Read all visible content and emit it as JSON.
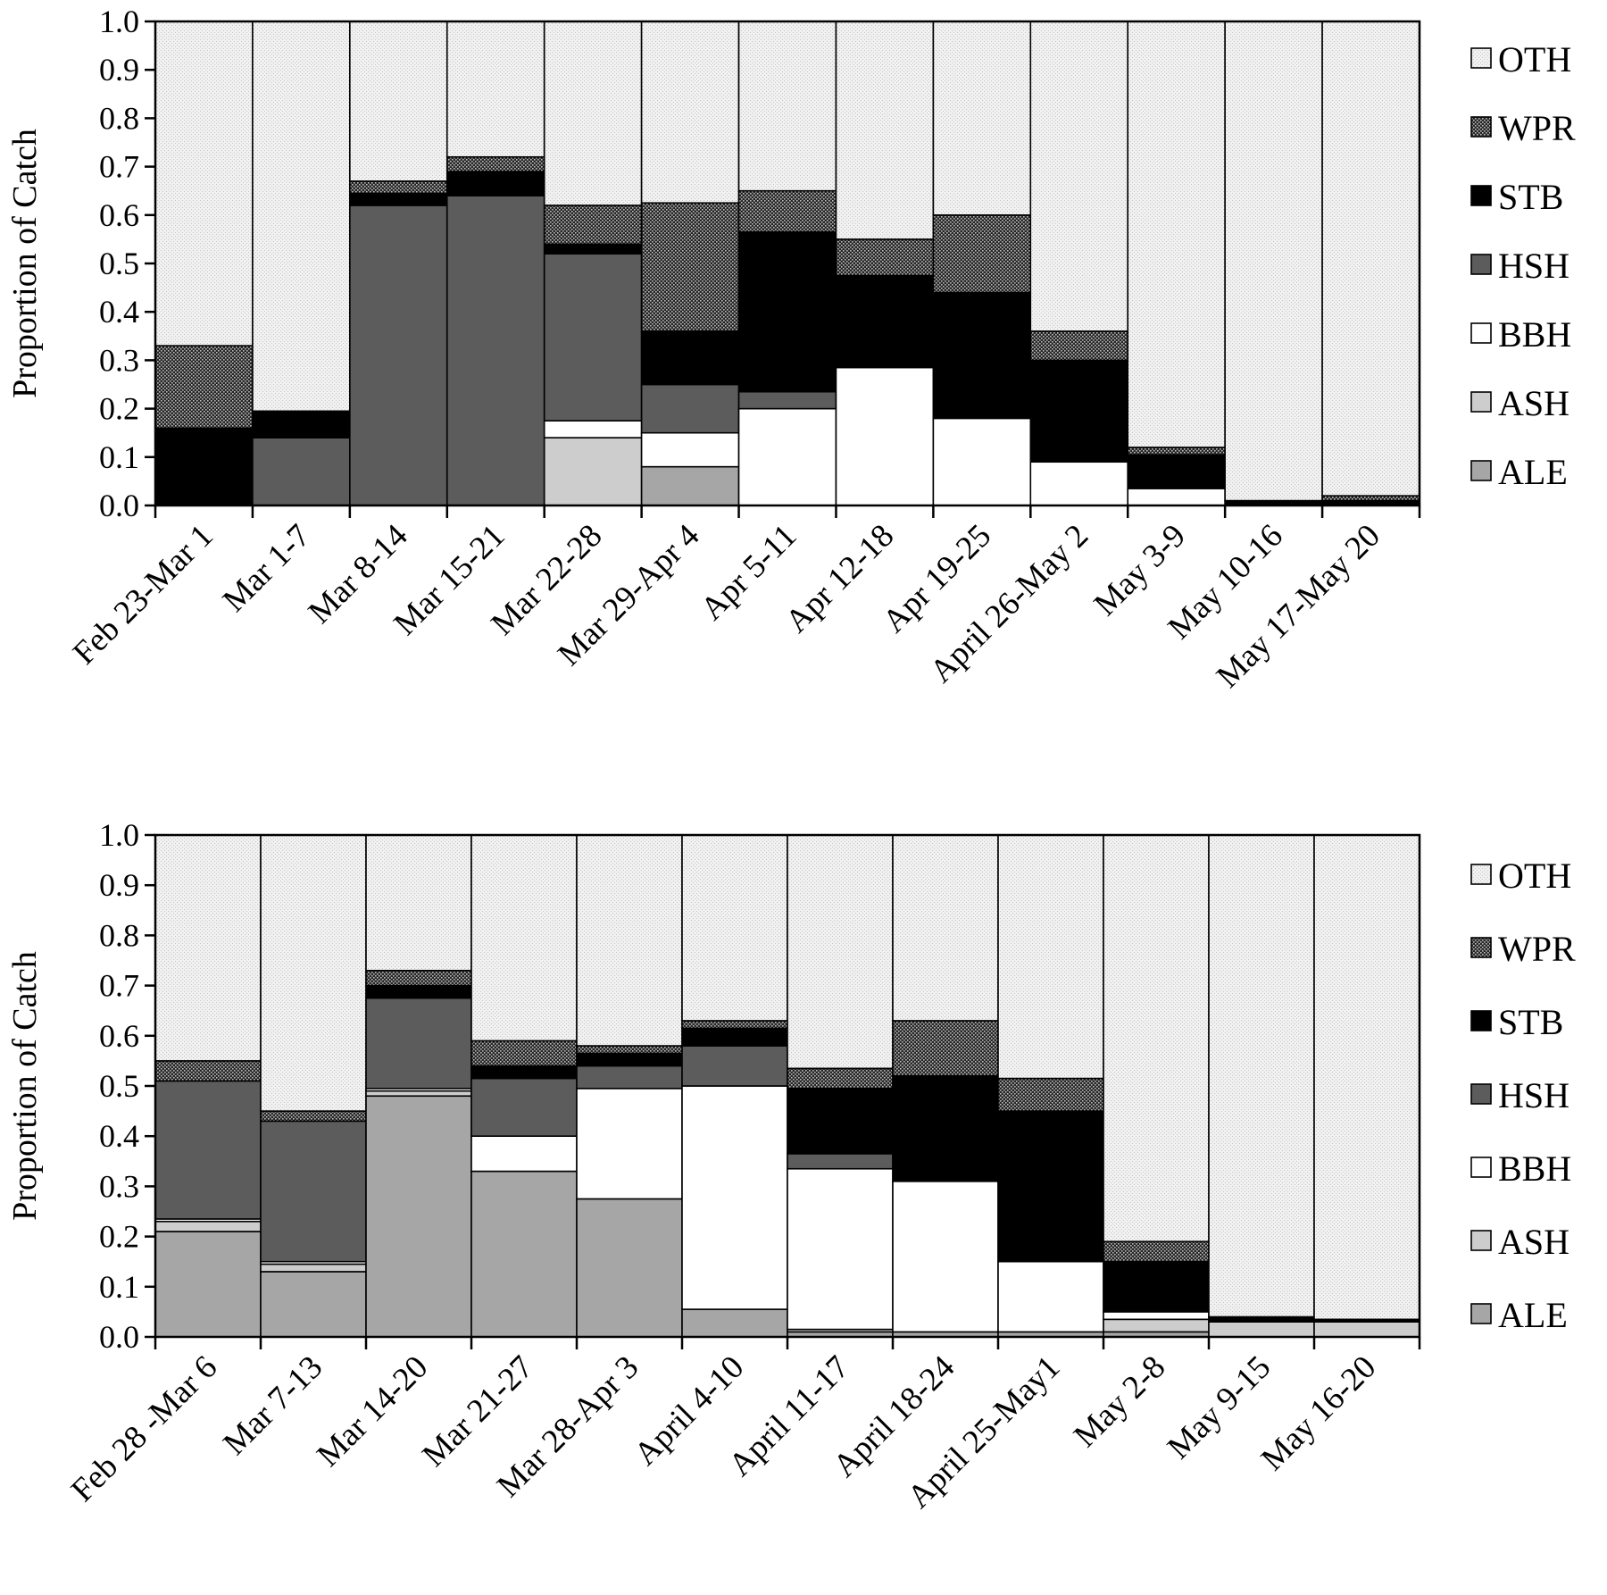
{
  "colors": {
    "ALE": "#a6a6a6",
    "ASH": "#cdcdcd",
    "BBH": "#ffffff",
    "HSH": "#5c5c5c",
    "STB": "#000000",
    "WPR": "#3a3a3a",
    "OTH": "#eeeeee"
  },
  "chart_data": [
    {
      "type": "bar",
      "stacked": true,
      "ylabel": "Proportion of Catch",
      "ylim": [
        0,
        1
      ],
      "yticks": [
        "0.0",
        "0.1",
        "0.2",
        "0.3",
        "0.4",
        "0.5",
        "0.6",
        "0.7",
        "0.8",
        "0.9",
        "1.0"
      ],
      "legend_position": "right",
      "legend": [
        "OTH",
        "WPR",
        "STB",
        "HSH",
        "BBH",
        "ASH",
        "ALE"
      ],
      "categories": [
        "Feb 23-Mar 1",
        "Mar 1-7",
        "Mar 8-14",
        "Mar 15-21",
        "Mar 22-28",
        "Mar 29-Apr 4",
        "Apr 5-11",
        "Apr 12-18",
        "Apr 19-25",
        "April 26-May 2",
        "May 3-9",
        "May 10-16",
        "May 17-May 20"
      ],
      "series": [
        {
          "name": "ALE",
          "values": [
            0,
            0,
            0,
            0,
            0,
            0.08,
            0,
            0,
            0,
            0,
            0,
            0,
            0
          ]
        },
        {
          "name": "ASH",
          "values": [
            0,
            0,
            0,
            0,
            0.14,
            0,
            0,
            0,
            0,
            0,
            0,
            0,
            0
          ]
        },
        {
          "name": "BBH",
          "values": [
            0,
            0,
            0,
            0,
            0.035,
            0.07,
            0.2,
            0.285,
            0.18,
            0.09,
            0.035,
            0,
            0
          ]
        },
        {
          "name": "HSH",
          "values": [
            0,
            0.14,
            0.62,
            0.64,
            0.345,
            0.1,
            0.035,
            0,
            0,
            0,
            0,
            0,
            0
          ]
        },
        {
          "name": "STB",
          "values": [
            0.16,
            0.055,
            0.025,
            0.05,
            0.02,
            0.11,
            0.33,
            0.19,
            0.26,
            0.21,
            0.07,
            0.01,
            0.01
          ]
        },
        {
          "name": "WPR",
          "values": [
            0.17,
            0,
            0.025,
            0.03,
            0.08,
            0.265,
            0.085,
            0.075,
            0.16,
            0.06,
            0.015,
            0,
            0.01
          ]
        },
        {
          "name": "OTH",
          "values": [
            0.67,
            0.805,
            0.33,
            0.28,
            0.38,
            0.375,
            0.35,
            0.45,
            0.4,
            0.64,
            0.88,
            0.99,
            0.98
          ]
        }
      ]
    },
    {
      "type": "bar",
      "stacked": true,
      "ylabel": "Proportion of Catch",
      "ylim": [
        0,
        1
      ],
      "yticks": [
        "0.0",
        "0.1",
        "0.2",
        "0.3",
        "0.4",
        "0.5",
        "0.6",
        "0.7",
        "0.8",
        "0.9",
        "1.0"
      ],
      "legend_position": "right",
      "legend": [
        "OTH",
        "WPR",
        "STB",
        "HSH",
        "BBH",
        "ASH",
        "ALE"
      ],
      "categories": [
        "Feb 28 -Mar 6",
        "Mar 7-13",
        "Mar 14-20",
        "Mar 21-27",
        "Mar 28-Apr 3",
        "April 4-10",
        "April 11-17",
        "April 18-24",
        "April 25-May1",
        "May 2-8",
        "May 9-15",
        "May 16-20"
      ],
      "series": [
        {
          "name": "ALE",
          "values": [
            0.21,
            0.13,
            0.48,
            0.33,
            0.275,
            0.055,
            0.01,
            0.01,
            0.01,
            0.01,
            0,
            0
          ]
        },
        {
          "name": "ASH",
          "values": [
            0.02,
            0.015,
            0.01,
            0,
            0,
            0,
            0.005,
            0,
            0,
            0.025,
            0.03,
            0.03
          ]
        },
        {
          "name": "BBH",
          "values": [
            0.005,
            0.005,
            0.005,
            0.07,
            0.22,
            0.445,
            0.32,
            0.3,
            0.14,
            0.015,
            0,
            0
          ]
        },
        {
          "name": "HSH",
          "values": [
            0.275,
            0.28,
            0.18,
            0.115,
            0.045,
            0.08,
            0.03,
            0,
            0,
            0,
            0,
            0
          ]
        },
        {
          "name": "STB",
          "values": [
            0,
            0,
            0.025,
            0.025,
            0.025,
            0.035,
            0.13,
            0.21,
            0.3,
            0.1,
            0.01,
            0.005
          ]
        },
        {
          "name": "WPR",
          "values": [
            0.04,
            0.02,
            0.03,
            0.05,
            0.015,
            0.015,
            0.04,
            0.11,
            0.065,
            0.04,
            0,
            0
          ]
        },
        {
          "name": "OTH",
          "values": [
            0.45,
            0.55,
            0.27,
            0.41,
            0.42,
            0.37,
            0.465,
            0.37,
            0.485,
            0.81,
            0.96,
            0.965
          ]
        }
      ]
    }
  ]
}
